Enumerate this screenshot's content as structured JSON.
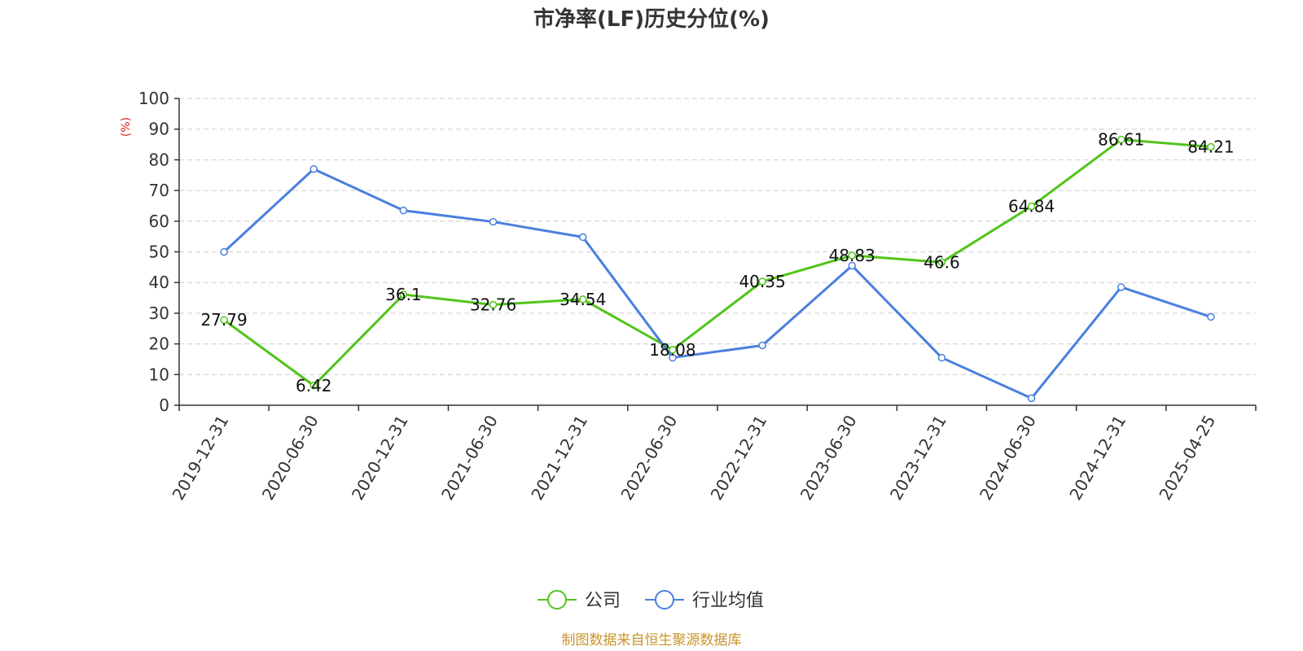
{
  "chart_data": {
    "type": "line",
    "title": "市净率(LF)历史分位(%)",
    "ylabel": "(%)",
    "ylim": [
      0,
      100
    ],
    "yticks": [
      0,
      10,
      20,
      30,
      40,
      50,
      60,
      70,
      80,
      90,
      100
    ],
    "categories": [
      "2019-12-31",
      "2020-06-30",
      "2020-12-31",
      "2021-06-30",
      "2021-12-31",
      "2022-06-30",
      "2022-12-31",
      "2023-06-30",
      "2023-12-31",
      "2024-06-30",
      "2024-12-31",
      "2025-04-25"
    ],
    "grid": true,
    "legend_position": "bottom-center",
    "series": [
      {
        "name": "公司",
        "color": "#52c41a",
        "values": [
          27.79,
          6.42,
          36.1,
          32.76,
          34.54,
          18.08,
          40.35,
          48.83,
          46.6,
          64.84,
          86.61,
          84.21
        ],
        "labels": [
          "27.79",
          "6.42",
          "36.1",
          "32.76",
          "34.54",
          "18.08",
          "40.35",
          "48.83",
          "46.6",
          "64.84",
          "86.61",
          "84.21"
        ]
      },
      {
        "name": "行业均值",
        "color": "#4a7fdf",
        "values": [
          50,
          77,
          63.5,
          59.8,
          54.8,
          15.5,
          19.5,
          45.5,
          15.5,
          2.3,
          38.5,
          28.8
        ]
      }
    ]
  },
  "source": {
    "text": "制图数据来自恒生聚源数据库",
    "color": "#c8952c"
  },
  "unit_color": "#e02020"
}
